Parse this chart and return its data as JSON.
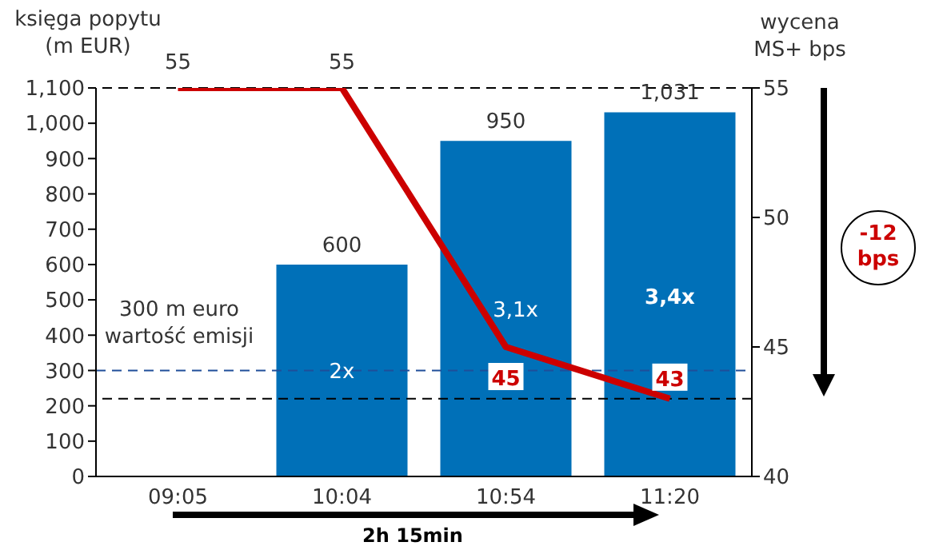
{
  "chart_data": {
    "type": "bar",
    "ylabel": "księga popytu\n(m EUR)",
    "y2label": "wycena\nMS+ bps",
    "categories": [
      "09:05",
      "10:04",
      "10:54",
      "11:20"
    ],
    "series": [
      {
        "color": "#0070b8",
        "values": [
          null,
          600,
          950,
          1031
        ],
        "value_labels": [
          null,
          "600",
          "950",
          "1,031"
        ]
      },
      {
        "type": "line",
        "axis": "y2",
        "color": "#cc0000",
        "values": [
          55,
          55,
          45,
          43
        ],
        "value_labels": [
          "55",
          "55",
          "45",
          "43"
        ]
      }
    ],
    "ylim": [
      0,
      1100
    ],
    "yticks": [
      0,
      100,
      200,
      300,
      400,
      500,
      600,
      700,
      800,
      900,
      {
        "value": 1000,
        "label": "1,000"
      },
      {
        "value": 1100,
        "label": "1,100"
      }
    ],
    "y2lim": [
      40,
      55
    ],
    "y2ticks": [
      40,
      45,
      50,
      55
    ],
    "ref_lines": [
      {
        "axis": "y",
        "value": 300,
        "label": "300 m euro\nwartość emisji",
        "color": "#1f4e99",
        "line_style": "dashed"
      },
      {
        "axis": "y2",
        "value": 55,
        "color": "#000000",
        "line_style": "dashed"
      },
      {
        "axis": "y2",
        "value": 43,
        "color": "#000000",
        "line_style": "dashed"
      }
    ],
    "annotations": [
      "2x",
      "3,1x",
      "3,4x",
      "-12 bps",
      "2h 15min"
    ],
    "grid": false,
    "legend": false,
    "marker": "none",
    "line_style": "solid"
  }
}
